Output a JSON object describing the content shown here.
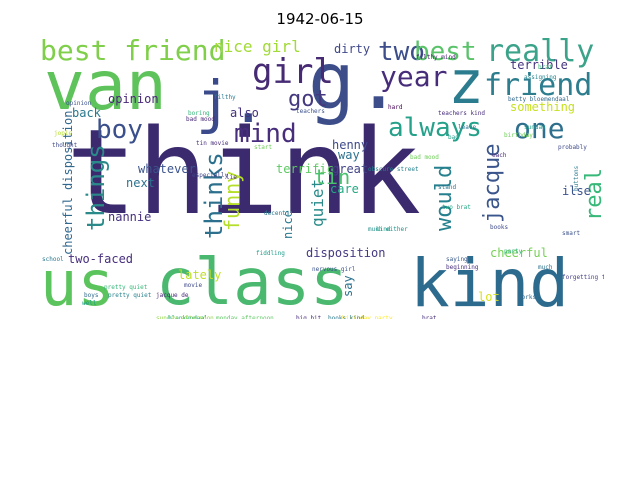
{
  "title": "1942-06-15",
  "word_cloud": {
    "words": [
      {
        "text": "think",
        "color": "#3b2a6e"
      },
      {
        "text": "us",
        "color": "#5bc45c"
      },
      {
        "text": "class",
        "color": "#4ab86e"
      },
      {
        "text": "kind",
        "color": "#2c6b8e"
      },
      {
        "text": "van",
        "color": "#5ec35a"
      },
      {
        "text": "g.",
        "color": "#3c4d8a"
      },
      {
        "text": "z",
        "color": "#2a7c8e"
      },
      {
        "text": "j.",
        "color": "#3a4a8a"
      },
      {
        "text": "girl",
        "color": "#462a73"
      },
      {
        "text": "year",
        "color": "#472c7a"
      },
      {
        "text": "really",
        "color": "#3ba38a"
      },
      {
        "text": "friend",
        "color": "#2c7d8e"
      },
      {
        "text": "best friend",
        "color": "#7fcf4a"
      },
      {
        "text": "two",
        "color": "#3d4e8a"
      },
      {
        "text": "best",
        "color": "#5ac36a"
      },
      {
        "text": "boy",
        "color": "#3a4f8b"
      },
      {
        "text": "mind",
        "color": "#472d7b"
      },
      {
        "text": "always",
        "color": "#25a18a"
      },
      {
        "text": "one",
        "color": "#2e6f8e"
      },
      {
        "text": "got",
        "color": "#44397f"
      },
      {
        "text": "things",
        "color": "#2a8a8a"
      },
      {
        "text": "thinks",
        "color": "#2d708e"
      },
      {
        "text": "funny",
        "color": "#b5de2b"
      },
      {
        "text": "quiet",
        "color": "#2a8a8a"
      },
      {
        "text": "tin",
        "color": "#4ac16d"
      },
      {
        "text": "jacque",
        "color": "#3a558c"
      },
      {
        "text": "would",
        "color": "#26818e"
      },
      {
        "text": "real",
        "color": "#37b878"
      },
      {
        "text": "nice girl",
        "color": "#a2da37"
      },
      {
        "text": "dirty",
        "color": "#3f4889"
      },
      {
        "text": "terrible",
        "color": "#46337e"
      },
      {
        "text": "back",
        "color": "#2a788e"
      },
      {
        "text": "opinion",
        "color": "#482878"
      },
      {
        "text": "also",
        "color": "#46327e"
      },
      {
        "text": "henny",
        "color": "#3e4a89"
      },
      {
        "text": "way",
        "color": "#2c728e"
      },
      {
        "text": "something",
        "color": "#c8e020"
      },
      {
        "text": "cheerful disposition",
        "color": "#31688e"
      },
      {
        "text": "whatever",
        "color": "#3b528b"
      },
      {
        "text": "next",
        "color": "#2c728e"
      },
      {
        "text": "nannie",
        "color": "#46307e"
      },
      {
        "text": "terrific",
        "color": "#5ec962"
      },
      {
        "text": "nice",
        "color": "#2a788e"
      },
      {
        "text": "care",
        "color": "#23a983"
      },
      {
        "text": "great",
        "color": "#414487"
      },
      {
        "text": "ilse",
        "color": "#3b528b"
      },
      {
        "text": "cheerful",
        "color": "#75d054"
      },
      {
        "text": "disposition",
        "color": "#443a83"
      },
      {
        "text": "two-faced",
        "color": "#472f7d"
      },
      {
        "text": "lately",
        "color": "#c2df23"
      },
      {
        "text": "say",
        "color": "#2c728e"
      },
      {
        "text": "lot",
        "color": "#d8e219"
      },
      {
        "text": "assigning",
        "color": "#25848e"
      },
      {
        "text": "filthy mind",
        "color": "#482374"
      },
      {
        "text": "filthy",
        "color": "#2a788e"
      },
      {
        "text": "boring",
        "color": "#35b779"
      },
      {
        "text": "thought",
        "color": "#3e4989"
      },
      {
        "text": "jopie",
        "color": "#b5de2b"
      },
      {
        "text": "birthday party",
        "color": "#fde725"
      },
      {
        "text": "monday afternoon",
        "color": "#5ec962"
      },
      {
        "text": "big hit",
        "color": "#482878"
      },
      {
        "text": "books kind",
        "color": "#2a788e"
      },
      {
        "text": "blankendaal",
        "color": "#22a884"
      },
      {
        "text": "teachers",
        "color": "#3b528b"
      },
      {
        "text": "brat",
        "color": "#472d7b"
      },
      {
        "text": "betty bloemendaal",
        "color": "#31688e"
      },
      {
        "text": "sunday",
        "color": "#1f9e89"
      },
      {
        "text": "school",
        "color": "#2a788e"
      },
      {
        "text": "probably",
        "color": "#3e4a89"
      },
      {
        "text": "jacque de",
        "color": "#482677"
      },
      {
        "text": "pretty quiet",
        "color": "#35b779"
      },
      {
        "text": "especially",
        "color": "#414487"
      },
      {
        "text": "obscure street",
        "color": "#26828e"
      },
      {
        "text": "tin movie",
        "color": "#472c7a"
      },
      {
        "text": "birthday",
        "color": "#6ece58"
      },
      {
        "text": "much either",
        "color": "#21918c"
      },
      {
        "text": "nervous girl",
        "color": "#3b528b"
      },
      {
        "text": "stand",
        "color": "#2c728e"
      },
      {
        "text": "forgetting things",
        "color": "#433e85"
      },
      {
        "text": "fiddling",
        "color": "#1f9e89"
      },
      {
        "text": "sunday afternoon",
        "color": "#8fd744"
      },
      {
        "text": "decent",
        "color": "#2a788e"
      },
      {
        "text": "beginning",
        "color": "#46307e"
      },
      {
        "text": "saying",
        "color": "#38598c"
      },
      {
        "text": "movie",
        "color": "#3e4989"
      },
      {
        "text": "party",
        "color": "#35b779"
      },
      {
        "text": "bad",
        "color": "#1f9e89"
      },
      {
        "text": "bad mood",
        "color": "#6ece58"
      },
      {
        "text": "hard",
        "color": "#440154"
      },
      {
        "text": "leave",
        "color": "#2c728e"
      },
      {
        "text": "teachers kind",
        "color": "#472c7a"
      },
      {
        "text": "opinion",
        "color": "#3b528b"
      },
      {
        "text": "two brat",
        "color": "#22a884"
      },
      {
        "text": "books",
        "color": "#3e4a89"
      },
      {
        "text": "well",
        "color": "#1f9e89"
      },
      {
        "text": "boys",
        "color": "#31688e"
      },
      {
        "text": "bad mood",
        "color": "#482878"
      },
      {
        "text": "pretty quiet",
        "color": "#26828e"
      },
      {
        "text": "brat",
        "color": "#35b779"
      },
      {
        "text": "smart",
        "color": "#3b528b"
      },
      {
        "text": "buttons",
        "color": "#2a788e"
      },
      {
        "text": "each",
        "color": "#472d7b"
      },
      {
        "text": "works",
        "color": "#31688e"
      },
      {
        "text": "start",
        "color": "#6ece58"
      },
      {
        "text": "much",
        "color": "#2c728e"
      },
      {
        "text": "kind",
        "color": "#1f9e89"
      },
      {
        "text": "lie",
        "color": "#482878"
      }
    ]
  }
}
